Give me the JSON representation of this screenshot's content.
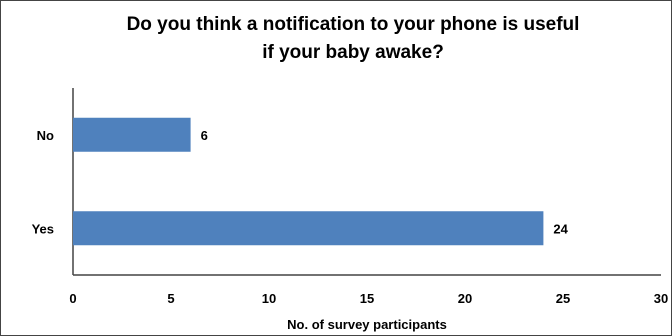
{
  "chart_data": {
    "type": "bar",
    "orientation": "horizontal",
    "title_lines": [
      "Do you think a notification to your phone is useful",
      "if your baby awake?"
    ],
    "categories": [
      "No",
      "Yes"
    ],
    "values": [
      6,
      24
    ],
    "data_labels": [
      "6",
      "24"
    ],
    "xlabel": "No. of survey participants",
    "ylabel": "",
    "xlim": [
      0,
      30
    ],
    "x_ticks": [
      "0",
      "5",
      "10",
      "15",
      "20",
      "25",
      "30"
    ],
    "bar_color": "#4f81bd",
    "grid": false,
    "legend": "none"
  }
}
